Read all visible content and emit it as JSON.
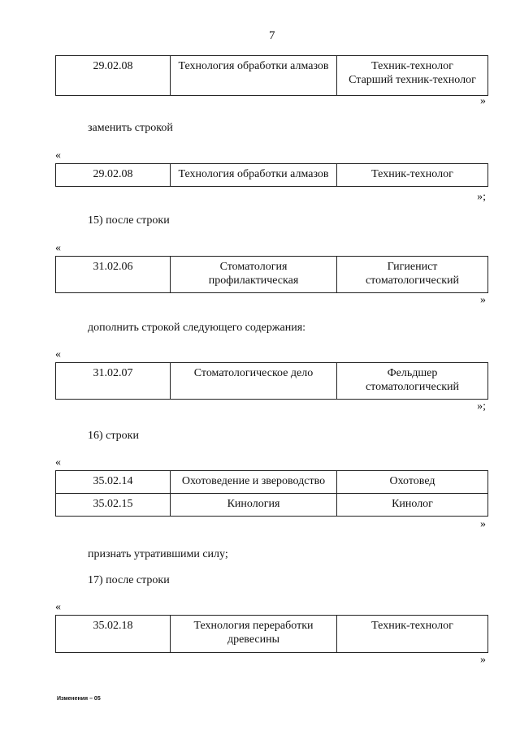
{
  "page_number": "7",
  "blocks": {
    "t1": {
      "rows": [
        [
          "29.02.08",
          "Технология обработки алмазов",
          "Техник-технолог\nСтарший техник-технолог"
        ]
      ],
      "close": "»"
    },
    "p1": "заменить строкой",
    "t2": {
      "open": "«",
      "rows": [
        [
          "29.02.08",
          "Технология обработки алмазов",
          "Техник-технолог"
        ]
      ],
      "close": "»;"
    },
    "p2": "15) после строки",
    "t3": {
      "open": "«",
      "rows": [
        [
          "31.02.06",
          "Стоматология профилактическая",
          "Гигиенист стоматологический"
        ]
      ],
      "close": "»"
    },
    "p3": "дополнить строкой следующего содержания:",
    "t4": {
      "open": "«",
      "rows": [
        [
          "31.02.07",
          "Стоматологическое дело",
          "Фельдшер стоматологический"
        ]
      ],
      "close": "»;"
    },
    "p4": "16) строки",
    "t5": {
      "open": "«",
      "rows": [
        [
          "35.02.14",
          "Охотоведение и звероводство",
          "Охотовед"
        ],
        [
          "35.02.15",
          "Кинология",
          "Кинолог"
        ]
      ],
      "close": "»"
    },
    "p5": "признать утратившими силу;",
    "p6": "17) после строки",
    "t6": {
      "open": "«",
      "rows": [
        [
          "35.02.18",
          "Технология переработки древесины",
          "Техник-технолог"
        ]
      ],
      "close": "»"
    }
  },
  "footer": "Изменения – 05"
}
